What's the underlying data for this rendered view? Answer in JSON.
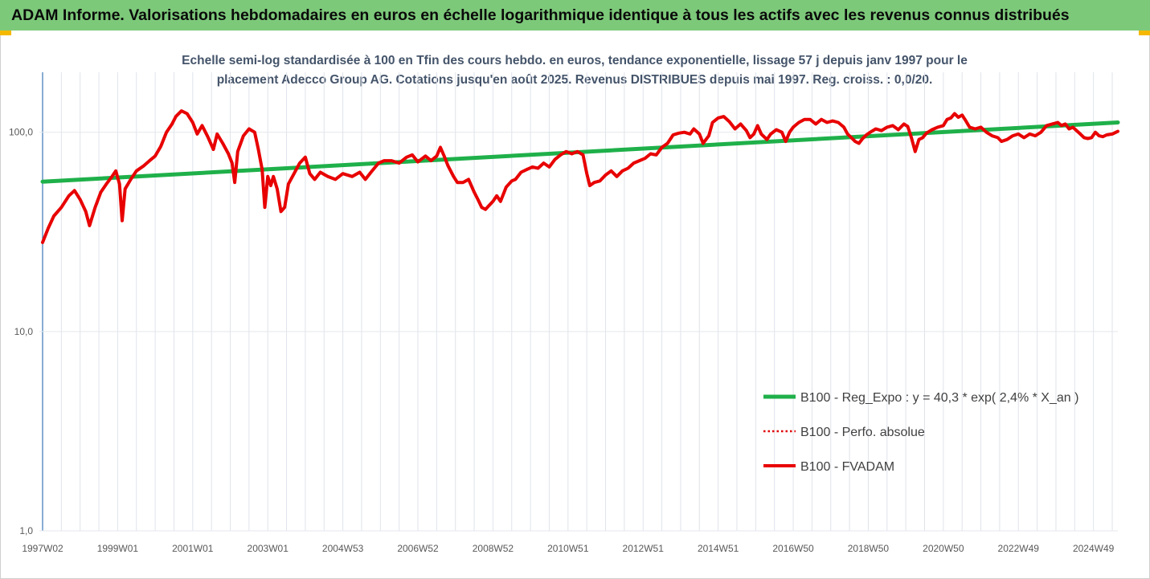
{
  "header": {
    "title": "ADAM Informe. Valorisations hebdomadaires en euros en échelle logarithmique identique à tous les actifs avec les revenus connus distribués"
  },
  "chart_data": {
    "type": "line",
    "title_lines": [
      "Echelle semi-log standardisée à 100 en Tfin des cours hebdo. en euros, tendance exponentielle, lissage 57 j depuis janv 1997 pour le",
      "placement Adecco Group AG. Cotations jusqu'en août 2025. Revenus DISTRIBUES depuis mai 1997. Reg. croiss. : 0,0/20."
    ],
    "y_scale": "log",
    "ylim": [
      1,
      200
    ],
    "y_ticks": [
      {
        "value": 1,
        "label": "1,0"
      },
      {
        "value": 10,
        "label": "10,0"
      },
      {
        "value": 100,
        "label": "100,0"
      }
    ],
    "x_range": [
      1997.0,
      2025.65
    ],
    "x_ticks": [
      {
        "x": 1997.0,
        "label": "1997W02"
      },
      {
        "x": 1999.0,
        "label": "1999W01"
      },
      {
        "x": 2001.0,
        "label": "2001W01"
      },
      {
        "x": 2003.0,
        "label": "2003W01"
      },
      {
        "x": 2005.0,
        "label": "2004W53"
      },
      {
        "x": 2007.0,
        "label": "2006W52"
      },
      {
        "x": 2009.0,
        "label": "2008W52"
      },
      {
        "x": 2011.0,
        "label": "2010W51"
      },
      {
        "x": 2013.0,
        "label": "2012W51"
      },
      {
        "x": 2015.0,
        "label": "2014W51"
      },
      {
        "x": 2017.0,
        "label": "2016W50"
      },
      {
        "x": 2019.0,
        "label": "2018W50"
      },
      {
        "x": 2021.0,
        "label": "2020W50"
      },
      {
        "x": 2023.0,
        "label": "2022W49"
      },
      {
        "x": 2025.0,
        "label": "2024W49"
      }
    ],
    "grid": "vertical",
    "legend_position": "right",
    "series": [
      {
        "name": "B100 - Reg_Expo : y = 40,3 * exp( 2,4% *  X_an )",
        "color": "#1fb04a",
        "style": "solid-thick",
        "points": [
          [
            1997.0,
            56.5
          ],
          [
            2025.65,
            112
          ]
        ]
      },
      {
        "name": "B100 - Perfo. absolue",
        "color": "#e00000",
        "style": "dotted",
        "points": []
      },
      {
        "name": "B100 - FVADAM",
        "color": "#e80000",
        "style": "solid",
        "points": [
          [
            1997.0,
            28
          ],
          [
            1997.15,
            33
          ],
          [
            1997.3,
            38
          ],
          [
            1997.5,
            42
          ],
          [
            1997.7,
            48
          ],
          [
            1997.85,
            51
          ],
          [
            1998.0,
            46
          ],
          [
            1998.15,
            40
          ],
          [
            1998.25,
            34
          ],
          [
            1998.4,
            42
          ],
          [
            1998.55,
            50
          ],
          [
            1998.7,
            55
          ],
          [
            1998.85,
            60
          ],
          [
            1998.95,
            64
          ],
          [
            1999.05,
            55
          ],
          [
            1999.12,
            36
          ],
          [
            1999.2,
            52
          ],
          [
            1999.35,
            58
          ],
          [
            1999.5,
            64
          ],
          [
            1999.7,
            68
          ],
          [
            1999.85,
            72
          ],
          [
            2000.0,
            76
          ],
          [
            2000.15,
            85
          ],
          [
            2000.3,
            100
          ],
          [
            2000.45,
            110
          ],
          [
            2000.55,
            120
          ],
          [
            2000.7,
            128
          ],
          [
            2000.85,
            124
          ],
          [
            2001.0,
            112
          ],
          [
            2001.12,
            98
          ],
          [
            2001.25,
            108
          ],
          [
            2001.4,
            95
          ],
          [
            2001.55,
            82
          ],
          [
            2001.65,
            98
          ],
          [
            2001.8,
            88
          ],
          [
            2001.95,
            78
          ],
          [
            2002.05,
            70
          ],
          [
            2002.12,
            56
          ],
          [
            2002.2,
            80
          ],
          [
            2002.35,
            96
          ],
          [
            2002.5,
            104
          ],
          [
            2002.65,
            100
          ],
          [
            2002.75,
            82
          ],
          [
            2002.85,
            65
          ],
          [
            2002.92,
            42
          ],
          [
            2003.0,
            60
          ],
          [
            2003.08,
            54
          ],
          [
            2003.15,
            60
          ],
          [
            2003.25,
            52
          ],
          [
            2003.35,
            40
          ],
          [
            2003.45,
            42
          ],
          [
            2003.55,
            55
          ],
          [
            2003.7,
            62
          ],
          [
            2003.85,
            70
          ],
          [
            2004.0,
            75
          ],
          [
            2004.12,
            62
          ],
          [
            2004.25,
            58
          ],
          [
            2004.4,
            63
          ],
          [
            2004.6,
            60
          ],
          [
            2004.8,
            58
          ],
          [
            2005.0,
            62
          ],
          [
            2005.25,
            60
          ],
          [
            2005.45,
            63
          ],
          [
            2005.6,
            58
          ],
          [
            2005.75,
            63
          ],
          [
            2005.95,
            70
          ],
          [
            2006.1,
            72
          ],
          [
            2006.3,
            72
          ],
          [
            2006.5,
            70
          ],
          [
            2006.7,
            75
          ],
          [
            2006.85,
            77
          ],
          [
            2007.0,
            71
          ],
          [
            2007.2,
            76
          ],
          [
            2007.35,
            72
          ],
          [
            2007.5,
            76
          ],
          [
            2007.6,
            84
          ],
          [
            2007.7,
            76
          ],
          [
            2007.8,
            68
          ],
          [
            2007.95,
            60
          ],
          [
            2008.05,
            56
          ],
          [
            2008.2,
            56
          ],
          [
            2008.35,
            58
          ],
          [
            2008.5,
            50
          ],
          [
            2008.6,
            46
          ],
          [
            2008.7,
            42
          ],
          [
            2008.8,
            41
          ],
          [
            2008.9,
            43
          ],
          [
            2009.0,
            45
          ],
          [
            2009.1,
            48
          ],
          [
            2009.2,
            45
          ],
          [
            2009.35,
            53
          ],
          [
            2009.5,
            57
          ],
          [
            2009.6,
            58
          ],
          [
            2009.75,
            63
          ],
          [
            2009.9,
            65
          ],
          [
            2010.05,
            67
          ],
          [
            2010.2,
            66
          ],
          [
            2010.35,
            70
          ],
          [
            2010.5,
            67
          ],
          [
            2010.65,
            73
          ],
          [
            2010.8,
            77
          ],
          [
            2010.95,
            80
          ],
          [
            2011.1,
            78
          ],
          [
            2011.25,
            80
          ],
          [
            2011.4,
            77
          ],
          [
            2011.5,
            62
          ],
          [
            2011.58,
            54
          ],
          [
            2011.7,
            56
          ],
          [
            2011.85,
            57
          ],
          [
            2012.0,
            61
          ],
          [
            2012.15,
            64
          ],
          [
            2012.3,
            60
          ],
          [
            2012.45,
            64
          ],
          [
            2012.6,
            66
          ],
          [
            2012.75,
            70
          ],
          [
            2012.9,
            72
          ],
          [
            2013.05,
            74
          ],
          [
            2013.2,
            78
          ],
          [
            2013.35,
            77
          ],
          [
            2013.5,
            84
          ],
          [
            2013.65,
            88
          ],
          [
            2013.8,
            97
          ],
          [
            2013.95,
            99
          ],
          [
            2014.1,
            100
          ],
          [
            2014.25,
            98
          ],
          [
            2014.35,
            104
          ],
          [
            2014.5,
            98
          ],
          [
            2014.6,
            88
          ],
          [
            2014.75,
            96
          ],
          [
            2014.85,
            112
          ],
          [
            2015.0,
            118
          ],
          [
            2015.15,
            120
          ],
          [
            2015.3,
            113
          ],
          [
            2015.45,
            104
          ],
          [
            2015.6,
            110
          ],
          [
            2015.75,
            102
          ],
          [
            2015.85,
            94
          ],
          [
            2015.95,
            98
          ],
          [
            2016.05,
            108
          ],
          [
            2016.15,
            98
          ],
          [
            2016.3,
            92
          ],
          [
            2016.4,
            98
          ],
          [
            2016.55,
            103
          ],
          [
            2016.7,
            100
          ],
          [
            2016.8,
            90
          ],
          [
            2016.9,
            100
          ],
          [
            2017.0,
            106
          ],
          [
            2017.15,
            112
          ],
          [
            2017.3,
            116
          ],
          [
            2017.45,
            116
          ],
          [
            2017.6,
            110
          ],
          [
            2017.75,
            116
          ],
          [
            2017.9,
            112
          ],
          [
            2018.05,
            114
          ],
          [
            2018.2,
            112
          ],
          [
            2018.35,
            106
          ],
          [
            2018.45,
            98
          ],
          [
            2018.55,
            94
          ],
          [
            2018.65,
            90
          ],
          [
            2018.75,
            88
          ],
          [
            2018.85,
            93
          ],
          [
            2018.95,
            97
          ],
          [
            2019.05,
            100
          ],
          [
            2019.2,
            104
          ],
          [
            2019.35,
            102
          ],
          [
            2019.5,
            106
          ],
          [
            2019.65,
            108
          ],
          [
            2019.8,
            103
          ],
          [
            2019.95,
            110
          ],
          [
            2020.05,
            107
          ],
          [
            2020.15,
            94
          ],
          [
            2020.25,
            80
          ],
          [
            2020.35,
            92
          ],
          [
            2020.45,
            94
          ],
          [
            2020.55,
            99
          ],
          [
            2020.7,
            103
          ],
          [
            2020.85,
            106
          ],
          [
            2021.0,
            108
          ],
          [
            2021.1,
            116
          ],
          [
            2021.2,
            118
          ],
          [
            2021.3,
            124
          ],
          [
            2021.4,
            119
          ],
          [
            2021.5,
            122
          ],
          [
            2021.6,
            114
          ],
          [
            2021.7,
            106
          ],
          [
            2021.85,
            104
          ],
          [
            2022.0,
            106
          ],
          [
            2022.15,
            100
          ],
          [
            2022.3,
            96
          ],
          [
            2022.45,
            94
          ],
          [
            2022.55,
            90
          ],
          [
            2022.7,
            92
          ],
          [
            2022.85,
            96
          ],
          [
            2023.0,
            98
          ],
          [
            2023.15,
            94
          ],
          [
            2023.3,
            98
          ],
          [
            2023.45,
            96
          ],
          [
            2023.6,
            100
          ],
          [
            2023.75,
            108
          ],
          [
            2023.9,
            110
          ],
          [
            2024.05,
            112
          ],
          [
            2024.15,
            108
          ],
          [
            2024.25,
            110
          ],
          [
            2024.35,
            104
          ],
          [
            2024.45,
            106
          ],
          [
            2024.55,
            102
          ],
          [
            2024.65,
            98
          ],
          [
            2024.75,
            94
          ],
          [
            2024.85,
            93
          ],
          [
            2024.95,
            94
          ],
          [
            2025.05,
            100
          ],
          [
            2025.15,
            96
          ],
          [
            2025.25,
            95
          ],
          [
            2025.35,
            97
          ],
          [
            2025.5,
            98
          ],
          [
            2025.65,
            101
          ]
        ]
      }
    ]
  }
}
